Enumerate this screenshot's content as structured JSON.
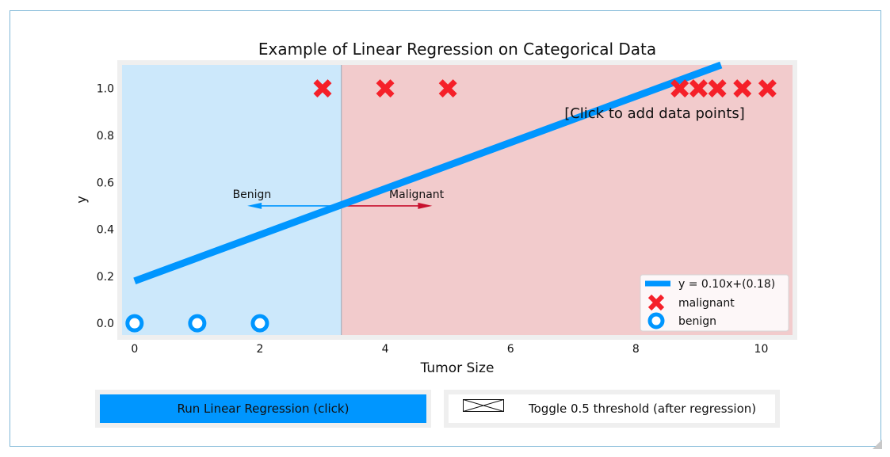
{
  "chart_data": {
    "type": "scatter",
    "title": "Example of Linear Regression on Categorical Data",
    "xlabel": "Tumor Size",
    "ylabel": "y",
    "xlim": [
      -0.2,
      10.5
    ],
    "ylim": [
      -0.05,
      1.1
    ],
    "x_ticks": [
      0,
      2,
      4,
      6,
      8,
      10
    ],
    "y_ticks": [
      0.0,
      0.2,
      0.4,
      0.6,
      0.8,
      1.0
    ],
    "grid": false,
    "legend_position": "bottom-right",
    "threshold_x": 3.3,
    "regions": [
      {
        "name": "benign-region",
        "from": -0.2,
        "to": 3.3,
        "color": "#cce8fb"
      },
      {
        "name": "malignant-region",
        "from": 3.3,
        "to": 10.5,
        "color": "#f2cbcc"
      }
    ],
    "series": [
      {
        "name": "malignant",
        "marker": "x",
        "color": "#f52029",
        "points": [
          [
            3,
            1
          ],
          [
            4,
            1
          ],
          [
            5,
            1
          ],
          [
            8.7,
            1
          ],
          [
            9,
            1
          ],
          [
            9.3,
            1
          ],
          [
            9.7,
            1
          ],
          [
            10.1,
            1
          ]
        ]
      },
      {
        "name": "benign",
        "marker": "o",
        "color": "#0096ff",
        "points": [
          [
            0,
            0
          ],
          [
            1,
            0
          ],
          [
            2,
            0
          ]
        ]
      }
    ],
    "regression_line": {
      "label": "y = 0.10x+(0.18)",
      "slope": 0.0983,
      "intercept": 0.18,
      "x_range": [
        0,
        9.5
      ],
      "color": "#0096ff"
    },
    "annotations": {
      "click_hint": "[Click to add data points]",
      "benign_label": "Benign",
      "malignant_label": "Malignant",
      "arrow_y": 0.5,
      "benign_arrow_to_x": 1.8,
      "malignant_arrow_to_x": 4.75,
      "benign_arrow_color": "#0096ff",
      "malignant_arrow_color": "#c8102e"
    }
  },
  "controls": {
    "regress_label": "Run Linear Regression (click)",
    "threshold_label": "Toggle 0.5 threshold (after regression)"
  }
}
